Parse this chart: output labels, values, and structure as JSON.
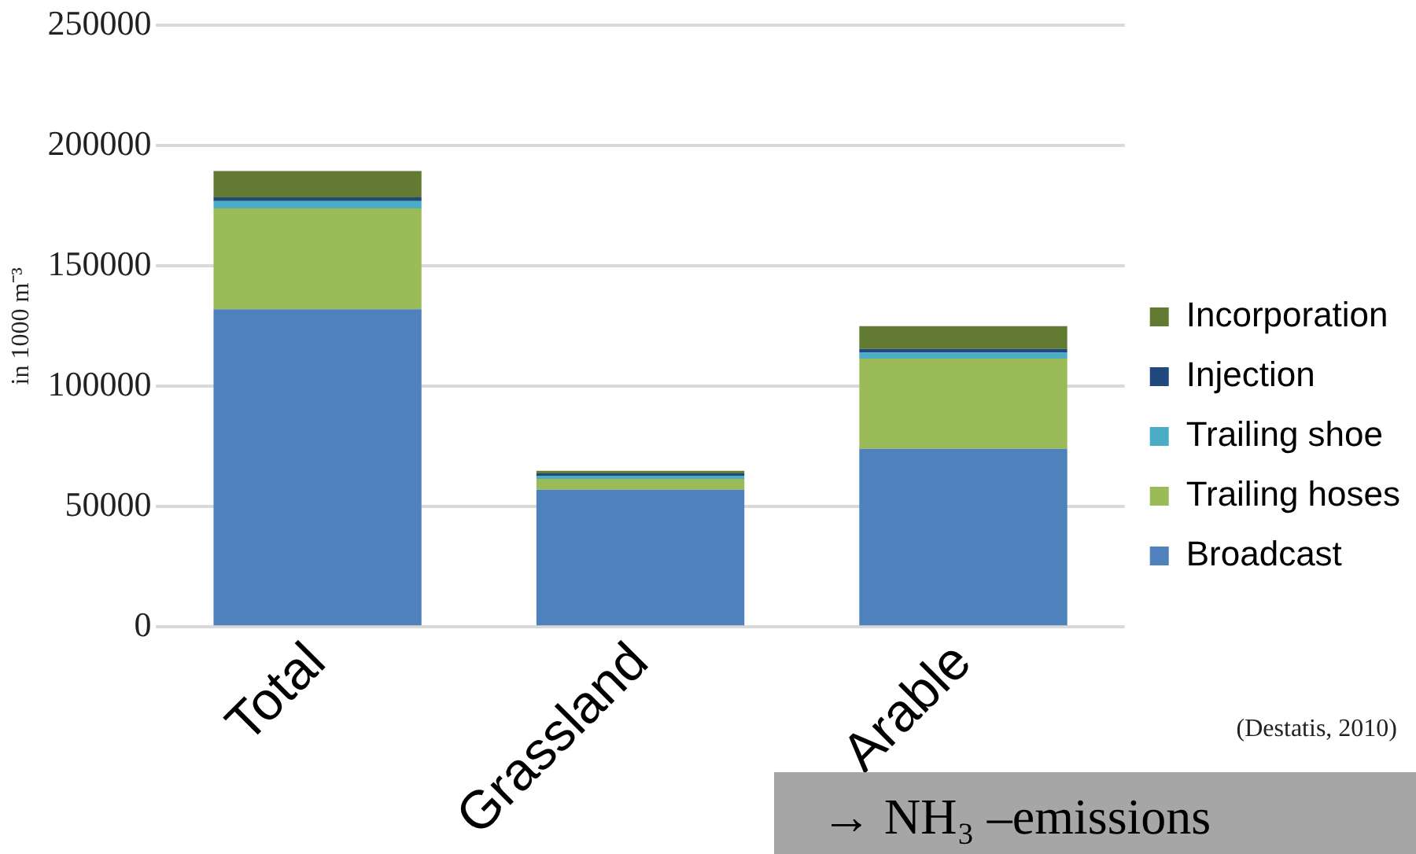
{
  "chart_data": {
    "type": "bar",
    "stacked": true,
    "ylabel": "in 1000 m⁻³",
    "categories": [
      "Total",
      "Grassland",
      "Arable"
    ],
    "series": [
      {
        "name": "Broadcast",
        "color": "#4f81bd",
        "values": [
          132000,
          57000,
          74000
        ]
      },
      {
        "name": "Trailing hoses",
        "color": "#9bbb59",
        "values": [
          42000,
          4500,
          37500
        ]
      },
      {
        "name": "Trailing shoe",
        "color": "#4bacc6",
        "values": [
          3000,
          1300,
          2500
        ]
      },
      {
        "name": "Injection",
        "color": "#1f497d",
        "values": [
          1500,
          1000,
          1500
        ]
      },
      {
        "name": "Incorporation",
        "color": "#637a32",
        "values": [
          11000,
          1100,
          9500
        ]
      }
    ],
    "ylim": [
      0,
      250000
    ],
    "yticks": [
      0,
      50000,
      100000,
      150000,
      200000,
      250000
    ],
    "grid": "y",
    "legend": "right",
    "annotations": [
      "(Destatis, 2010)",
      "→ NH₃ –emissions"
    ]
  }
}
